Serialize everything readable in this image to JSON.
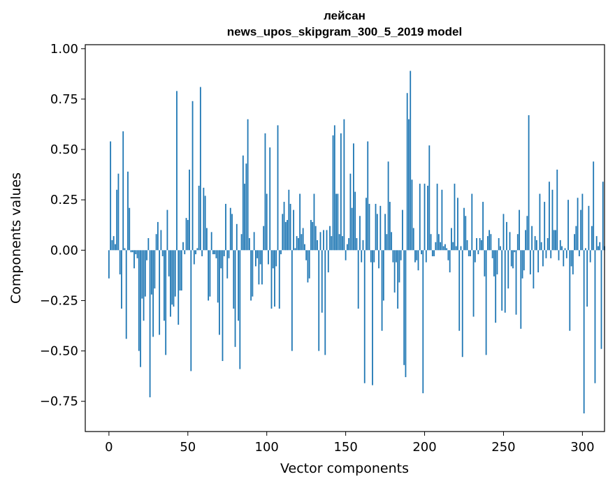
{
  "chart_data": {
    "type": "bar",
    "title_line1": "лейсан",
    "title_line2": "news_upos_skipgram_300_5_2019 model",
    "xlabel": "Vector components",
    "ylabel": "Components values",
    "xlim": [
      -15,
      314
    ],
    "ylim": [
      -0.9,
      1.02
    ],
    "xticks": [
      0,
      50,
      100,
      150,
      200,
      250,
      300
    ],
    "xtick_labels": [
      "0",
      "50",
      "100",
      "150",
      "200",
      "250",
      "300"
    ],
    "yticks": [
      -0.75,
      -0.5,
      -0.25,
      0.0,
      0.25,
      0.5,
      0.75,
      1.0
    ],
    "ytick_labels": [
      "−0.75",
      "−0.50",
      "−0.25",
      "0.00",
      "0.25",
      "0.50",
      "0.75",
      "1.00"
    ],
    "bar_color": "#1f77b4",
    "values": [
      -0.14,
      0.54,
      0.05,
      0.07,
      0.03,
      0.3,
      0.38,
      -0.12,
      -0.29,
      0.59,
      0.01,
      -0.44,
      0.39,
      0.21,
      -0.01,
      -0.01,
      -0.09,
      -0.02,
      -0.04,
      -0.5,
      -0.58,
      -0.24,
      -0.35,
      -0.23,
      -0.05,
      0.06,
      -0.73,
      -0.22,
      -0.43,
      -0.19,
      0.08,
      0.14,
      -0.42,
      0.1,
      -0.03,
      -0.35,
      -0.52,
      0.2,
      -0.13,
      -0.33,
      -0.27,
      -0.28,
      -0.23,
      0.79,
      -0.37,
      -0.2,
      -0.2,
      0.04,
      -0.02,
      0.16,
      0.15,
      0.4,
      -0.6,
      0.74,
      -0.07,
      -0.02,
      0.01,
      0.32,
      0.81,
      -0.03,
      0.31,
      0.27,
      0.11,
      -0.25,
      -0.23,
      0.09,
      -0.02,
      -0.02,
      -0.04,
      -0.26,
      -0.42,
      -0.09,
      -0.55,
      -0.03,
      0.23,
      -0.14,
      -0.04,
      0.21,
      0.18,
      -0.29,
      -0.48,
      0.13,
      -0.35,
      -0.59,
      0.08,
      0.47,
      0.33,
      0.43,
      0.65,
      0.06,
      -0.25,
      -0.23,
      0.09,
      -0.08,
      -0.04,
      -0.17,
      -0.07,
      -0.17,
      0.12,
      0.58,
      0.28,
      -0.07,
      0.51,
      -0.29,
      -0.09,
      -0.28,
      -0.08,
      0.62,
      -0.29,
      -0.02,
      0.18,
      0.24,
      0.14,
      0.15,
      0.3,
      0.23,
      -0.5,
      0.2,
      0.01,
      0.07,
      0.06,
      0.28,
      0.08,
      0.11,
      0.03,
      -0.05,
      -0.16,
      -0.14,
      0.15,
      0.14,
      0.28,
      0.12,
      0.05,
      -0.5,
      0.09,
      -0.31,
      0.1,
      -0.52,
      0.1,
      -0.11,
      0.12,
      0.07,
      0.57,
      0.62,
      0.28,
      0.28,
      0.08,
      0.58,
      0.07,
      0.65,
      -0.05,
      0.03,
      0.06,
      0.38,
      0.21,
      0.53,
      0.29,
      0.06,
      -0.29,
      0.17,
      -0.06,
      0.05,
      -0.66,
      0.26,
      0.54,
      0.23,
      -0.06,
      -0.67,
      -0.06,
      0.23,
      0.18,
      -0.09,
      0.22,
      -0.4,
      -0.25,
      0.18,
      0.08,
      0.44,
      0.24,
      0.09,
      -0.06,
      -0.21,
      -0.06,
      -0.29,
      -0.16,
      -0.05,
      0.2,
      -0.57,
      -0.63,
      0.78,
      0.65,
      0.89,
      0.35,
      0.11,
      -0.06,
      -0.05,
      -0.1,
      0.33,
      -0.02,
      -0.71,
      0.33,
      -0.06,
      0.32,
      0.52,
      0.08,
      -0.03,
      -0.03,
      0.04,
      0.33,
      0.08,
      0.04,
      0.3,
      0.02,
      0.03,
      0.01,
      -0.05,
      -0.11,
      0.11,
      0.04,
      0.33,
      0.02,
      0.26,
      -0.4,
      0.02,
      -0.53,
      0.21,
      0.17,
      0.05,
      -0.03,
      -0.03,
      0.28,
      -0.33,
      -0.06,
      0.06,
      -0.02,
      0.06,
      0.05,
      0.24,
      -0.13,
      -0.52,
      0.07,
      0.1,
      0.08,
      -0.04,
      -0.13,
      -0.36,
      -0.12,
      0.06,
      0.02,
      -0.3,
      0.18,
      -0.31,
      0.14,
      -0.19,
      0.09,
      -0.08,
      -0.09,
      -0.01,
      -0.32,
      0.08,
      0.2,
      -0.39,
      -0.14,
      -0.1,
      0.1,
      0.17,
      0.67,
      -0.12,
      0.12,
      -0.19,
      0.07,
      0.05,
      -0.11,
      0.28,
      0.04,
      -0.08,
      0.24,
      -0.04,
      0.06,
      0.34,
      -0.04,
      0.3,
      0.1,
      0.1,
      0.4,
      -0.05,
      0.05,
      0.02,
      -0.08,
      0.01,
      -0.04,
      0.25,
      -0.4,
      -0.08,
      -0.12,
      0.08,
      0.12,
      0.26,
      -0.03,
      0.2,
      0.28,
      -0.81,
      0.01,
      -0.28,
      0.22,
      -0.06,
      0.12,
      0.44,
      -0.66,
      0.07,
      0.02,
      0.04,
      -0.49,
      0.34,
      0.02
    ]
  }
}
